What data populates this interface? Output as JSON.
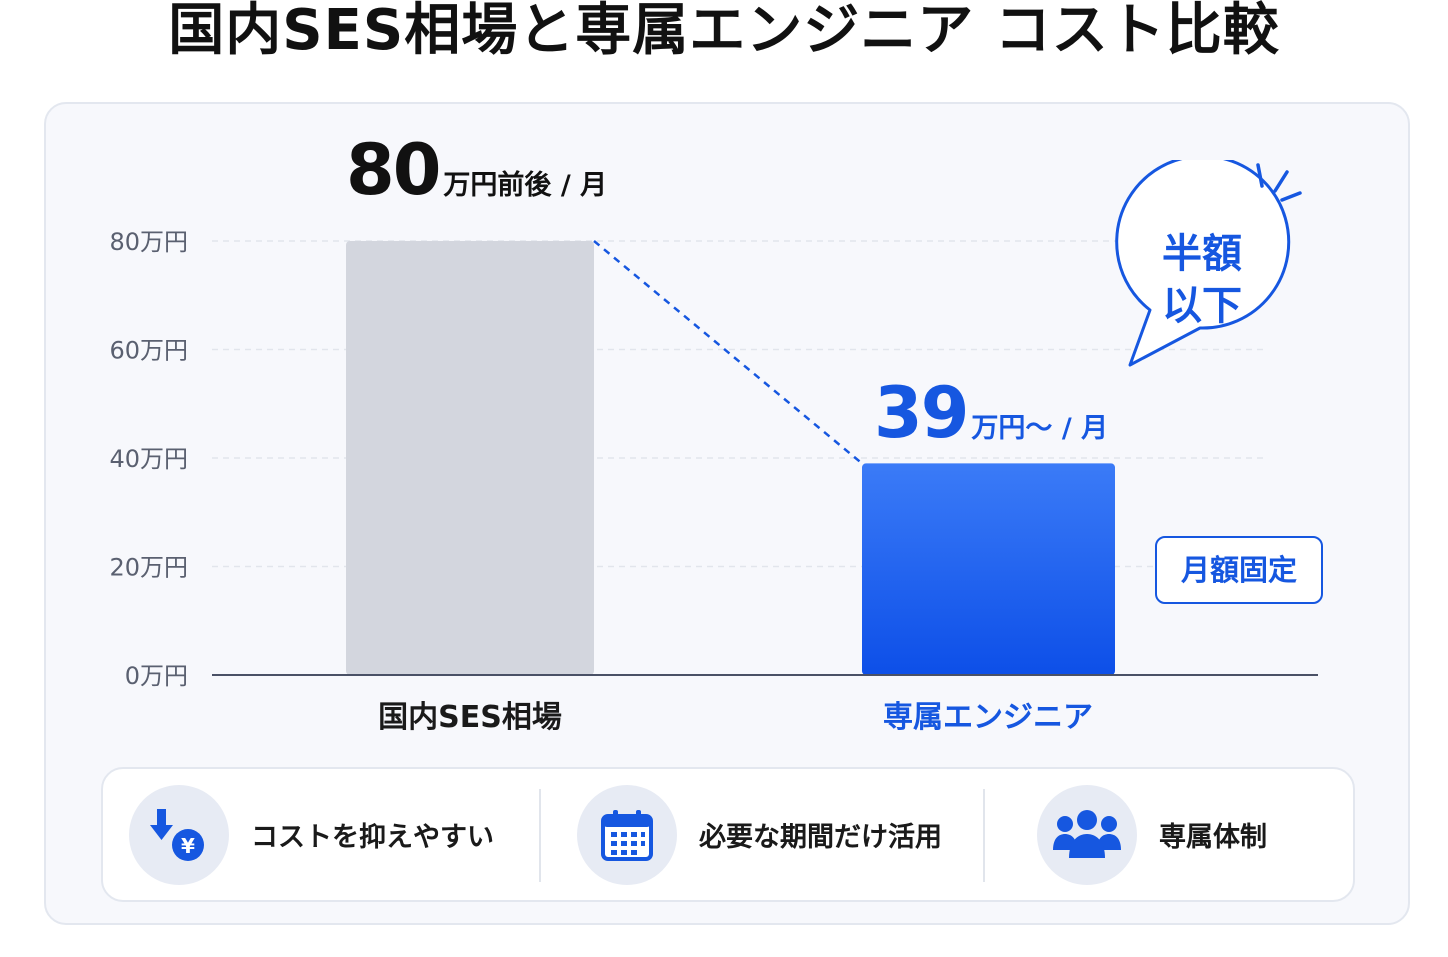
{
  "title": "国内SES相場と専属エンジニア コスト比較",
  "chart_data": {
    "type": "bar",
    "categories": [
      "国内SES相場",
      "専属エンジニア"
    ],
    "values": [
      80,
      39
    ],
    "unit": "万円",
    "ylim": [
      0,
      80
    ],
    "y_ticks": [
      "0万円",
      "20万円",
      "40万円",
      "60万円",
      "80万円"
    ],
    "bar_colors": [
      "#d3d6de",
      "#1f5ff0"
    ],
    "grid": true,
    "value_labels": [
      {
        "number": "80",
        "unit": "万円前後 / 月"
      },
      {
        "number": "39",
        "unit": "万円～ / 月"
      }
    ]
  },
  "callout": {
    "line1": "半額",
    "line2": "以下"
  },
  "tag": "月額固定",
  "features": [
    {
      "icon": "yen-down-arrow-icon",
      "label": "コストを抑えやすい"
    },
    {
      "icon": "calendar-icon",
      "label": "必要な期間だけ活用"
    },
    {
      "icon": "team-icon",
      "label": "専属体制"
    }
  ],
  "colors": {
    "accent": "#1657e0",
    "gray_bar": "#d3d6de",
    "icon_bg": "#e7ebf4"
  }
}
